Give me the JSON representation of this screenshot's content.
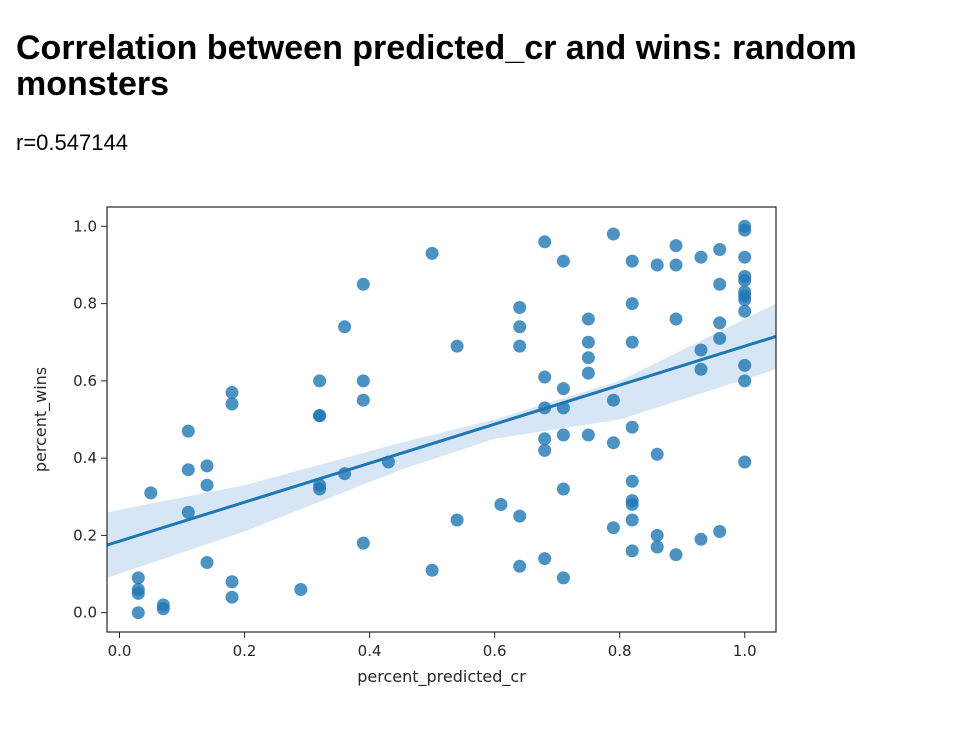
{
  "heading": "Correlation between predicted_cr and wins: random monsters",
  "stat_text": "r=0.547144",
  "chart_data": {
    "type": "scatter",
    "title": "",
    "xlabel": "percent_predicted_cr",
    "ylabel": "percent_wins",
    "xlim": [
      -0.02,
      1.05
    ],
    "ylim": [
      -0.05,
      1.05
    ],
    "xticks": [
      0.0,
      0.2,
      0.4,
      0.6,
      0.8,
      1.0
    ],
    "xtick_labels": [
      "0.0",
      "0.2",
      "0.4",
      "0.6",
      "0.8",
      "1.0"
    ],
    "yticks": [
      0.0,
      0.2,
      0.4,
      0.6,
      0.8,
      1.0
    ],
    "ytick_labels": [
      "0.0",
      "0.2",
      "0.4",
      "0.6",
      "0.8",
      "1.0"
    ],
    "grid": false,
    "colors": {
      "points": "#1f77b4",
      "line": "#1f77b4",
      "band": "#c6dbef"
    },
    "points": [
      [
        0.03,
        0.0
      ],
      [
        0.03,
        0.05
      ],
      [
        0.03,
        0.06
      ],
      [
        0.03,
        0.09
      ],
      [
        0.05,
        0.31
      ],
      [
        0.07,
        0.01
      ],
      [
        0.07,
        0.02
      ],
      [
        0.11,
        0.26
      ],
      [
        0.11,
        0.37
      ],
      [
        0.11,
        0.47
      ],
      [
        0.14,
        0.13
      ],
      [
        0.14,
        0.33
      ],
      [
        0.14,
        0.38
      ],
      [
        0.18,
        0.04
      ],
      [
        0.18,
        0.08
      ],
      [
        0.18,
        0.54
      ],
      [
        0.18,
        0.57
      ],
      [
        0.29,
        0.06
      ],
      [
        0.32,
        0.32
      ],
      [
        0.32,
        0.33
      ],
      [
        0.32,
        0.51
      ],
      [
        0.32,
        0.51
      ],
      [
        0.32,
        0.6
      ],
      [
        0.36,
        0.36
      ],
      [
        0.36,
        0.74
      ],
      [
        0.39,
        0.18
      ],
      [
        0.39,
        0.55
      ],
      [
        0.39,
        0.6
      ],
      [
        0.39,
        0.85
      ],
      [
        0.43,
        0.39
      ],
      [
        0.5,
        0.11
      ],
      [
        0.5,
        0.93
      ],
      [
        0.54,
        0.24
      ],
      [
        0.54,
        0.69
      ],
      [
        0.61,
        0.28
      ],
      [
        0.64,
        0.12
      ],
      [
        0.64,
        0.25
      ],
      [
        0.64,
        0.69
      ],
      [
        0.64,
        0.74
      ],
      [
        0.64,
        0.79
      ],
      [
        0.68,
        0.14
      ],
      [
        0.68,
        0.42
      ],
      [
        0.68,
        0.45
      ],
      [
        0.68,
        0.53
      ],
      [
        0.68,
        0.61
      ],
      [
        0.68,
        0.96
      ],
      [
        0.71,
        0.09
      ],
      [
        0.71,
        0.32
      ],
      [
        0.71,
        0.46
      ],
      [
        0.71,
        0.53
      ],
      [
        0.71,
        0.58
      ],
      [
        0.71,
        0.91
      ],
      [
        0.75,
        0.46
      ],
      [
        0.75,
        0.62
      ],
      [
        0.75,
        0.66
      ],
      [
        0.75,
        0.7
      ],
      [
        0.75,
        0.76
      ],
      [
        0.79,
        0.22
      ],
      [
        0.79,
        0.44
      ],
      [
        0.79,
        0.55
      ],
      [
        0.79,
        0.98
      ],
      [
        0.82,
        0.16
      ],
      [
        0.82,
        0.24
      ],
      [
        0.82,
        0.28
      ],
      [
        0.82,
        0.29
      ],
      [
        0.82,
        0.34
      ],
      [
        0.82,
        0.48
      ],
      [
        0.82,
        0.7
      ],
      [
        0.82,
        0.8
      ],
      [
        0.82,
        0.91
      ],
      [
        0.86,
        0.17
      ],
      [
        0.86,
        0.2
      ],
      [
        0.86,
        0.41
      ],
      [
        0.86,
        0.9
      ],
      [
        0.89,
        0.15
      ],
      [
        0.89,
        0.76
      ],
      [
        0.89,
        0.9
      ],
      [
        0.89,
        0.95
      ],
      [
        0.93,
        0.19
      ],
      [
        0.93,
        0.63
      ],
      [
        0.93,
        0.68
      ],
      [
        0.93,
        0.92
      ],
      [
        0.96,
        0.21
      ],
      [
        0.96,
        0.71
      ],
      [
        0.96,
        0.75
      ],
      [
        0.96,
        0.85
      ],
      [
        0.96,
        0.94
      ],
      [
        1.0,
        0.39
      ],
      [
        1.0,
        0.6
      ],
      [
        1.0,
        0.64
      ],
      [
        1.0,
        0.78
      ],
      [
        1.0,
        0.81
      ],
      [
        1.0,
        0.82
      ],
      [
        1.0,
        0.83
      ],
      [
        1.0,
        0.86
      ],
      [
        1.0,
        0.87
      ],
      [
        1.0,
        0.92
      ],
      [
        1.0,
        0.99
      ],
      [
        1.0,
        1.0
      ]
    ],
    "regression": {
      "x": [
        -0.02,
        1.05
      ],
      "y": [
        0.175,
        0.715
      ]
    },
    "confidence_band": {
      "x": [
        -0.02,
        0.2,
        0.45,
        0.6,
        0.8,
        1.05
      ],
      "upper": [
        0.26,
        0.33,
        0.44,
        0.5,
        0.6,
        0.8
      ],
      "lower": [
        0.09,
        0.21,
        0.37,
        0.45,
        0.5,
        0.63
      ]
    }
  }
}
